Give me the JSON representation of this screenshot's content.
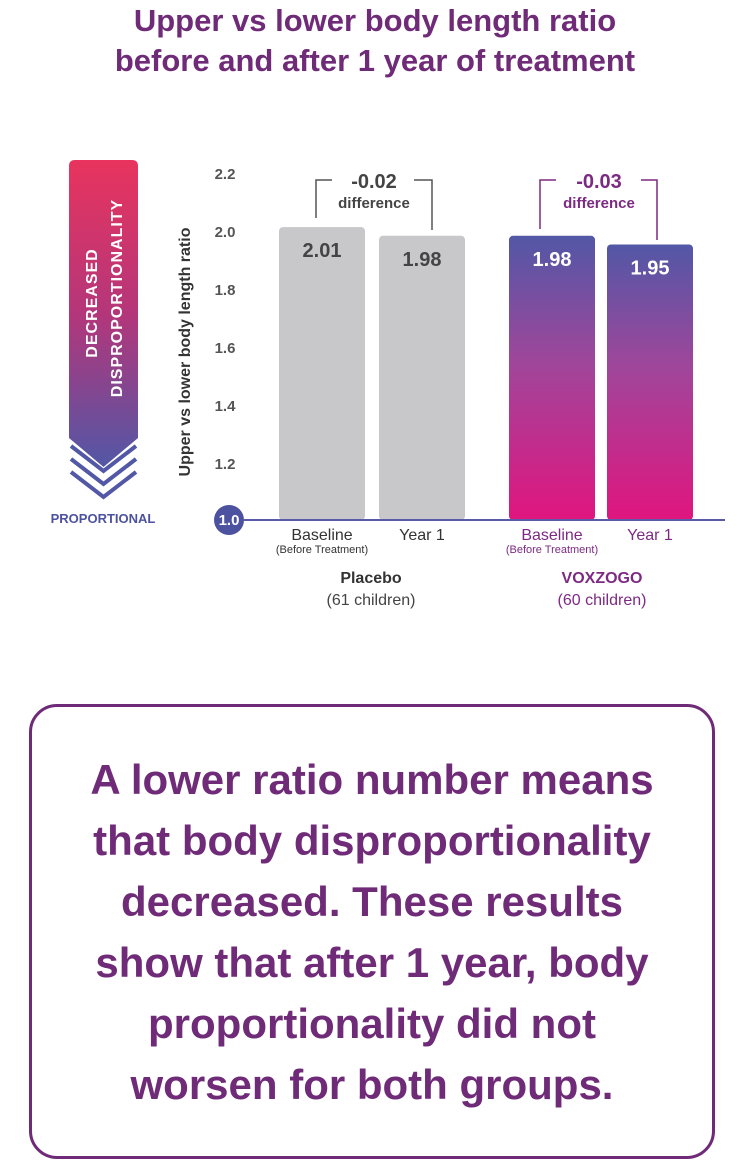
{
  "chart_data": {
    "type": "bar",
    "title_lines": [
      "Upper vs lower body length ratio",
      "before and after 1 year of treatment"
    ],
    "ylabel": "Upper vs lower body length ratio",
    "ylim": [
      1.0,
      2.2
    ],
    "yticks": [
      "1.0",
      "1.2",
      "1.4",
      "1.6",
      "1.8",
      "2.0",
      "2.2"
    ],
    "groups": [
      {
        "name": "Placebo",
        "subtitle": "(61 children)",
        "color": "#333333",
        "difference_value": "-0.02",
        "difference_label": "difference",
        "bars": [
          {
            "label": "Baseline",
            "sublabel": "(Before Treatment)",
            "value": 2.01,
            "value_label": "2.01"
          },
          {
            "label": "Year 1",
            "sublabel": "",
            "value": 1.98,
            "value_label": "1.98"
          }
        ]
      },
      {
        "name": "VOXZOGO",
        "subtitle": "(60 children)",
        "color": "#7d2a83",
        "difference_value": "-0.03",
        "difference_label": "difference",
        "bars": [
          {
            "label": "Baseline",
            "sublabel": "(Before Treatment)",
            "value": 1.98,
            "value_label": "1.98"
          },
          {
            "label": "Year 1",
            "sublabel": "",
            "value": 1.95,
            "value_label": "1.95"
          }
        ]
      }
    ],
    "side_indicator": {
      "arrow_text_lines": [
        "DECREASED",
        "DISPROPORTIONALITY"
      ],
      "bottom_label": "PROPORTIONAL"
    }
  },
  "note": {
    "lines": [
      "A lower ratio number means",
      "that body disproportionality",
      "decreased. These results",
      "show that after 1 year, body",
      "proportionality did not",
      "worsen for both groups."
    ]
  },
  "colors": {
    "brand_purple": "#6f2a78",
    "placebo_bar": "#c8c8ca",
    "treatment_bar_top": "#5257a6",
    "treatment_bar_bottom": "#e0157f",
    "axis_line": "#5a5aa8",
    "arrow_top": "#e8345e",
    "arrow_bottom": "#5257a6"
  }
}
